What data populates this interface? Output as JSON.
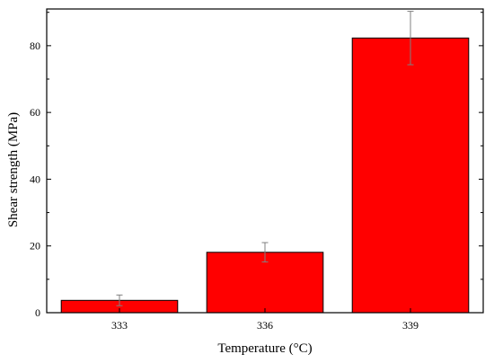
{
  "chart_data": {
    "type": "bar",
    "categories": [
      "333",
      "336",
      "339"
    ],
    "values": [
      3.7,
      18.1,
      82.3
    ],
    "errors": [
      1.6,
      2.9,
      8.0
    ],
    "xlabel": "Temperature (°C)",
    "ylabel": "Shear strength (MPa)",
    "ylim": [
      0,
      91
    ],
    "yticks": [
      0,
      20,
      40,
      60,
      80
    ],
    "bar_color": "#ff0000",
    "bar_edge_color": "#000000",
    "error_bar_color": "#808080",
    "grid": false,
    "legend": "none"
  }
}
